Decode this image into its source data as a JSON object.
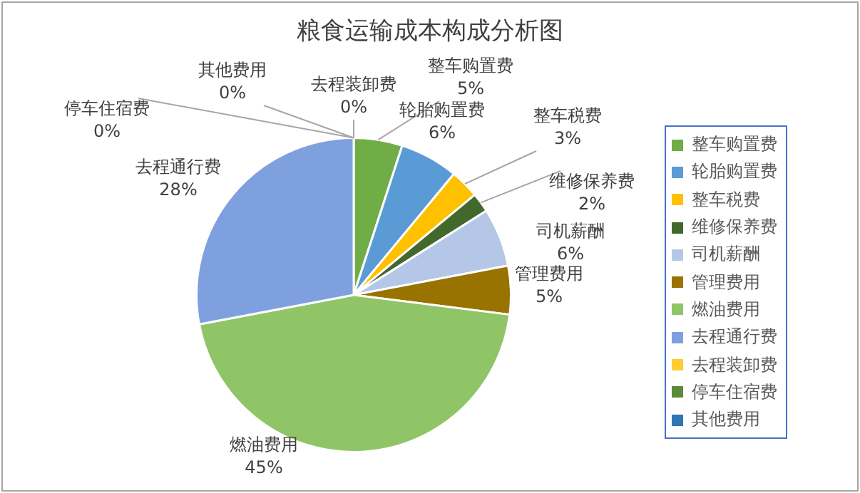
{
  "chart_data": {
    "type": "pie",
    "title": "粮食运输成本构成分析图",
    "categories": [
      "整车购置费",
      "轮胎购置费",
      "整车税费",
      "维修保养费",
      "司机薪酬",
      "管理费用",
      "燃油费用",
      "去程通行费",
      "去程装卸费",
      "停车住宿费",
      "其他费用"
    ],
    "values": [
      5,
      6,
      3,
      2,
      6,
      5,
      45,
      28,
      0,
      0,
      0
    ],
    "value_labels": [
      "5%",
      "6%",
      "3%",
      "2%",
      "6%",
      "5%",
      "45%",
      "28%",
      "0%",
      "0%",
      "0%"
    ],
    "colors": [
      "#70ad47",
      "#5b9bd5",
      "#ffc000",
      "#43682b",
      "#b4c7e7",
      "#997300",
      "#8fc566",
      "#7fa0df",
      "#ffcd33",
      "#5a8a3a",
      "#2e75b6"
    ],
    "legend": "right"
  }
}
